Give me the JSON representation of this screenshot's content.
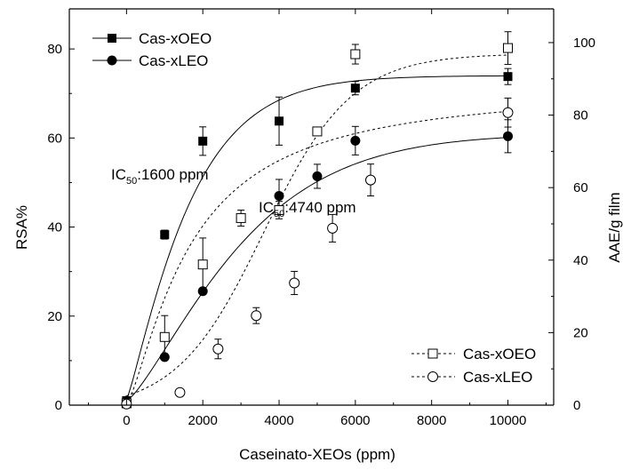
{
  "chart_data": {
    "type": "scatter",
    "title": "",
    "xlabel": "Caseinato-XEOs (ppm)",
    "ylabel": "RSA%",
    "y2label": "AAE/g film",
    "xlim": [
      -1500,
      11200
    ],
    "ylim": [
      0,
      89
    ],
    "y2lim": [
      0,
      109.3
    ],
    "xticks": [
      "0",
      "2000",
      "4000",
      "6000",
      "8000",
      "10000"
    ],
    "yticks": [
      "0",
      "20",
      "40",
      "60",
      "80"
    ],
    "y2ticks": [
      "0",
      "20",
      "40",
      "60",
      "80",
      "100"
    ],
    "grid": false,
    "series": [
      {
        "name": "Cas-xOEO",
        "axis": "left",
        "marker": "filled-square",
        "line": "solid",
        "x": [
          0,
          1000,
          2000,
          4000,
          6000,
          10000
        ],
        "y": [
          1,
          38.3,
          59.3,
          63.8,
          71.2,
          73.8
        ],
        "err": [
          0.5,
          1.0,
          3.2,
          5.4,
          1.5,
          1.8
        ]
      },
      {
        "name": "Cas-xLEO",
        "axis": "left",
        "marker": "filled-circle",
        "line": "solid",
        "x": [
          0,
          1000,
          2000,
          4000,
          5000,
          6000,
          10000
        ],
        "y": [
          1,
          10.8,
          25.6,
          47,
          51.4,
          59.4,
          60.4
        ],
        "err": [
          0.3,
          0.5,
          0.6,
          3.7,
          2.7,
          3.2,
          3.7
        ]
      },
      {
        "name": "Cas-xOEO",
        "axis": "right",
        "marker": "open-square",
        "line": "dashed",
        "x": [
          0,
          1000,
          2000,
          3000,
          4000,
          5000,
          6000,
          10000
        ],
        "y": [
          0.5,
          18.8,
          38.8,
          51.6,
          53.8,
          75.5,
          96.8,
          98.5
        ],
        "err": [
          0.5,
          5.9,
          7.3,
          2.2,
          2.4,
          0.7,
          2.7,
          4.5
        ]
      },
      {
        "name": "Cas-xLEO",
        "axis": "right",
        "marker": "open-circle",
        "line": "dashed",
        "x": [
          0,
          1400,
          2400,
          3400,
          4400,
          5400,
          6400,
          10000
        ],
        "y": [
          0.3,
          3.5,
          15.5,
          24.7,
          33.7,
          48.8,
          62.1,
          80.7
        ],
        "err": [
          0.2,
          0.8,
          2.7,
          2.2,
          3.2,
          3.8,
          4.4,
          4.0
        ]
      }
    ],
    "legends": [
      {
        "placement": "top-left",
        "entries": [
          "Cas-xOEO",
          "Cas-xLEO"
        ]
      },
      {
        "placement": "bottom-right",
        "entries": [
          "Cas-xOEO",
          "Cas-xLEO"
        ]
      }
    ],
    "annotations": [
      {
        "main": "IC",
        "sub": "50",
        "rest": ":1600 ppm"
      },
      {
        "main": "IC",
        "sub": "50",
        "rest": ":4740 ppm"
      }
    ]
  }
}
